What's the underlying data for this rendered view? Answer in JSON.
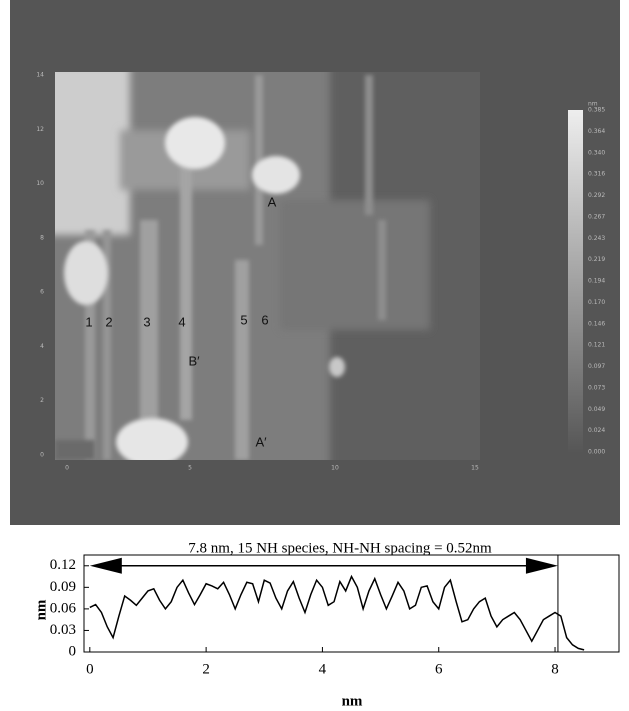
{
  "stm_image": {
    "labels": [
      "A",
      "A′",
      "B′",
      "1",
      "2",
      "3",
      "4",
      "5",
      "6"
    ],
    "x_axis_labels": [
      "0",
      "5",
      "10",
      "15"
    ],
    "y_axis_labels": [
      "14",
      "12",
      "10",
      "8",
      "6",
      "4",
      "2",
      "0"
    ],
    "colorbar_unit": "nm",
    "colorbar_labels": [
      "0.385",
      "0.364",
      "0.340",
      "0.316",
      "0.292",
      "0.267",
      "0.243",
      "0.219",
      "0.194",
      "0.170",
      "0.146",
      "0.121",
      "0.097",
      "0.073",
      "0.049",
      "0.024",
      "0.000"
    ]
  },
  "chart_data": {
    "type": "line",
    "annotation": {
      "text": "7.8 nm, 15 NH species, NH-NH spacing = 0.52nm",
      "start": 0,
      "end": 8.05,
      "y": 0.12
    },
    "xlabel": "nm",
    "ylabel": "nm",
    "color": "#000000",
    "x": [
      0.0,
      0.1,
      0.2,
      0.3,
      0.4,
      0.5,
      0.6,
      0.7,
      0.8,
      0.9,
      1.0,
      1.1,
      1.2,
      1.3,
      1.4,
      1.5,
      1.6,
      1.7,
      1.8,
      1.9,
      2.0,
      2.1,
      2.2,
      2.3,
      2.4,
      2.5,
      2.6,
      2.7,
      2.8,
      2.9,
      3.0,
      3.1,
      3.2,
      3.3,
      3.4,
      3.5,
      3.6,
      3.7,
      3.8,
      3.9,
      4.0,
      4.1,
      4.2,
      4.3,
      4.4,
      4.5,
      4.6,
      4.7,
      4.8,
      4.9,
      5.0,
      5.1,
      5.2,
      5.3,
      5.4,
      5.5,
      5.6,
      5.7,
      5.8,
      5.9,
      6.0,
      6.1,
      6.2,
      6.3,
      6.4,
      6.5,
      6.6,
      6.7,
      6.8,
      6.9,
      7.0,
      7.1,
      7.2,
      7.3,
      7.4,
      7.5,
      7.6,
      7.7,
      7.8,
      7.9,
      8.0,
      8.1,
      8.2,
      8.3,
      8.4,
      8.5
    ],
    "values": [
      0.062,
      0.066,
      0.055,
      0.035,
      0.02,
      0.05,
      0.078,
      0.072,
      0.065,
      0.075,
      0.085,
      0.088,
      0.072,
      0.06,
      0.07,
      0.09,
      0.1,
      0.082,
      0.066,
      0.08,
      0.095,
      0.092,
      0.088,
      0.097,
      0.08,
      0.06,
      0.08,
      0.097,
      0.095,
      0.07,
      0.1,
      0.096,
      0.075,
      0.06,
      0.085,
      0.098,
      0.075,
      0.055,
      0.08,
      0.1,
      0.09,
      0.065,
      0.07,
      0.098,
      0.085,
      0.105,
      0.09,
      0.06,
      0.085,
      0.102,
      0.08,
      0.06,
      0.078,
      0.097,
      0.085,
      0.06,
      0.065,
      0.09,
      0.092,
      0.07,
      0.06,
      0.09,
      0.1,
      0.07,
      0.042,
      0.045,
      0.06,
      0.07,
      0.075,
      0.05,
      0.035,
      0.045,
      0.05,
      0.055,
      0.045,
      0.03,
      0.015,
      0.03,
      0.045,
      0.05,
      0.055,
      0.05,
      0.02,
      0.01,
      0.005,
      0.003
    ],
    "xlim": [
      -0.1,
      9.1
    ],
    "xticks": [
      0,
      2,
      4,
      6,
      8
    ],
    "ylim": [
      0,
      0.135
    ],
    "yticks": [
      0,
      0.03,
      0.06,
      0.09,
      0.12
    ]
  }
}
